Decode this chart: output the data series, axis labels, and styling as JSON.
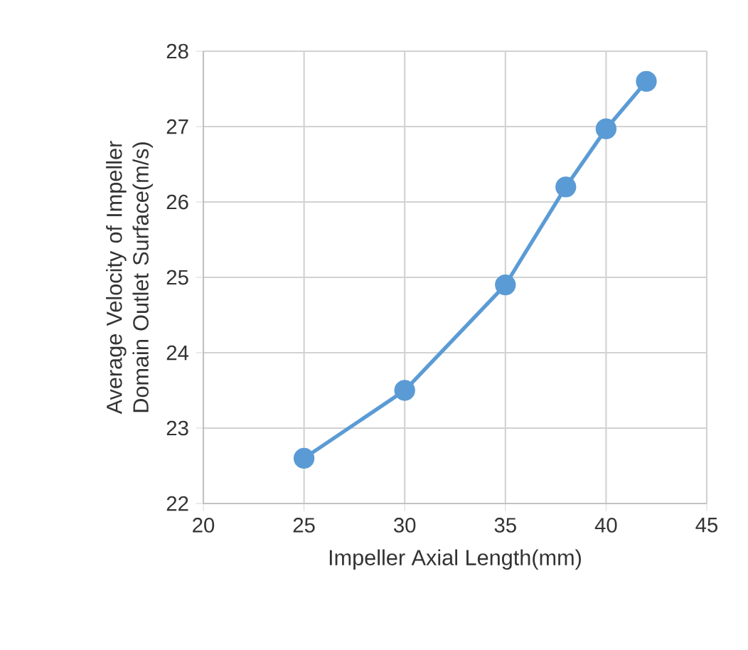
{
  "chart_data": {
    "type": "line",
    "xlabel": "Impeller Axial Length(mm)",
    "ylabel": "Average Velocity of Impeller Domain Outlet Surface(m/s)",
    "x": [
      25,
      30,
      35,
      38,
      40,
      42
    ],
    "series": [
      {
        "color": "#5b9bd5",
        "values": [
          22.6,
          23.5,
          24.9,
          26.2,
          26.97,
          27.6
        ]
      }
    ],
    "xlim": [
      20,
      45
    ],
    "ylim": [
      22,
      28
    ],
    "xticks": [
      20,
      25,
      30,
      35,
      40,
      45
    ],
    "yticks": [
      22,
      23,
      24,
      25,
      26,
      27,
      28
    ],
    "grid": true,
    "marker": "circle",
    "line_style": "solid"
  }
}
